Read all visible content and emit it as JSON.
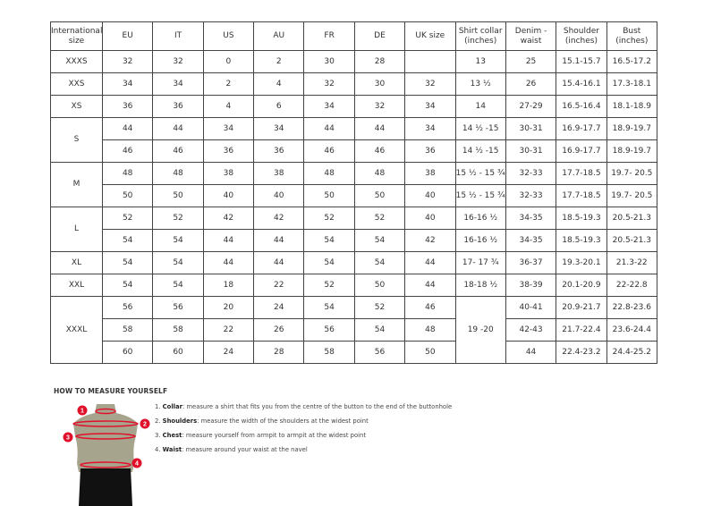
{
  "table": {
    "headers": [
      "International size",
      "EU",
      "IT",
      "US",
      "AU",
      "FR",
      "DE",
      "UK size",
      "Shirt collar (inches)",
      "Denim - waist",
      "Shoulder (inches)",
      "Bust (inches)"
    ],
    "rows": [
      [
        {
          "text": "XXXS"
        },
        "32",
        "32",
        "0",
        "2",
        "30",
        "28",
        "",
        "13",
        "25",
        "15.1-15.7",
        "16.5-17.2"
      ],
      [
        {
          "text": "XXS"
        },
        "34",
        "34",
        "2",
        "4",
        "32",
        "30",
        "32",
        "13 ½",
        "26",
        "15.4-16.1",
        "17.3-18.1"
      ],
      [
        {
          "text": "XS"
        },
        "36",
        "36",
        "4",
        "6",
        "34",
        "32",
        "34",
        "14",
        "27-29",
        "16.5-16.4",
        "18.1-18.9"
      ],
      [
        {
          "text": "S",
          "rowspan": 2
        },
        "44",
        "44",
        "34",
        "34",
        "44",
        "44",
        "34",
        "14 ½ -15",
        "30-31",
        "16.9-17.7",
        "18.9-19.7"
      ],
      [
        "46",
        "46",
        "36",
        "36",
        "46",
        "46",
        "36",
        "14 ½ -15",
        "30-31",
        "16.9-17.7",
        "18.9-19.7"
      ],
      [
        {
          "text": "M",
          "rowspan": 2
        },
        "48",
        "48",
        "38",
        "38",
        "48",
        "48",
        "38",
        "15 ½ - 15 ¾",
        "32-33",
        "17.7-18.5",
        "19.7- 20.5"
      ],
      [
        "50",
        "50",
        "40",
        "40",
        "50",
        "50",
        "40",
        "15 ½ - 15 ¾",
        "32-33",
        "17.7-18.5",
        "19.7- 20.5"
      ],
      [
        {
          "text": "L",
          "rowspan": 2
        },
        "52",
        "52",
        "42",
        "42",
        "52",
        "52",
        "40",
        "16-16 ½",
        "34-35",
        "18.5-19.3",
        "20.5-21.3"
      ],
      [
        "54",
        "54",
        "44",
        "44",
        "54",
        "54",
        "42",
        "16-16 ½",
        "34-35",
        "18.5-19.3",
        "20.5-21.3"
      ],
      [
        {
          "text": "XL"
        },
        "54",
        "54",
        "44",
        "44",
        "54",
        "54",
        "44",
        "17- 17 ¾",
        "36-37",
        "19.3-20.1",
        "21.3-22"
      ],
      [
        {
          "text": "XXL"
        },
        "54",
        "54",
        "18",
        "22",
        "52",
        "50",
        "44",
        "18-18 ½",
        "38-39",
        "20.1-20.9",
        "22-22.8"
      ],
      [
        {
          "text": "XXXL",
          "rowspan": 3
        },
        "56",
        "56",
        "20",
        "24",
        "54",
        "52",
        "46",
        {
          "text": "19 -20",
          "rowspan": 3
        },
        "40-41",
        "20.9-21.7",
        "22.8-23.6"
      ],
      [
        "58",
        "58",
        "22",
        "26",
        "56",
        "54",
        "48",
        "42-43",
        "21.7-22.4",
        "23.6-24.4"
      ],
      [
        "60",
        "60",
        "24",
        "28",
        "58",
        "56",
        "50",
        "44",
        "22.4-23.2",
        "24.4-25.2"
      ]
    ]
  },
  "measure": {
    "title": "HOW TO MEASURE YOURSELF",
    "markers": [
      "1",
      "2",
      "3",
      "4"
    ],
    "marker_color": "#e0102a",
    "steps": [
      {
        "num": "1.",
        "term": "Collar",
        "desc": ": measure a shirt that fits you from the centre of the button to the end of the buttonhole"
      },
      {
        "num": "2.",
        "term": "Shoulders",
        "desc": ": measure the width of the shoulders at the widest point"
      },
      {
        "num": "3.",
        "term": "Chest",
        "desc": ": measure yourself from armpit to armpit at the widest point"
      },
      {
        "num": "4.",
        "term": "Waist",
        "desc": ": measure around your waist at the navel"
      }
    ]
  }
}
